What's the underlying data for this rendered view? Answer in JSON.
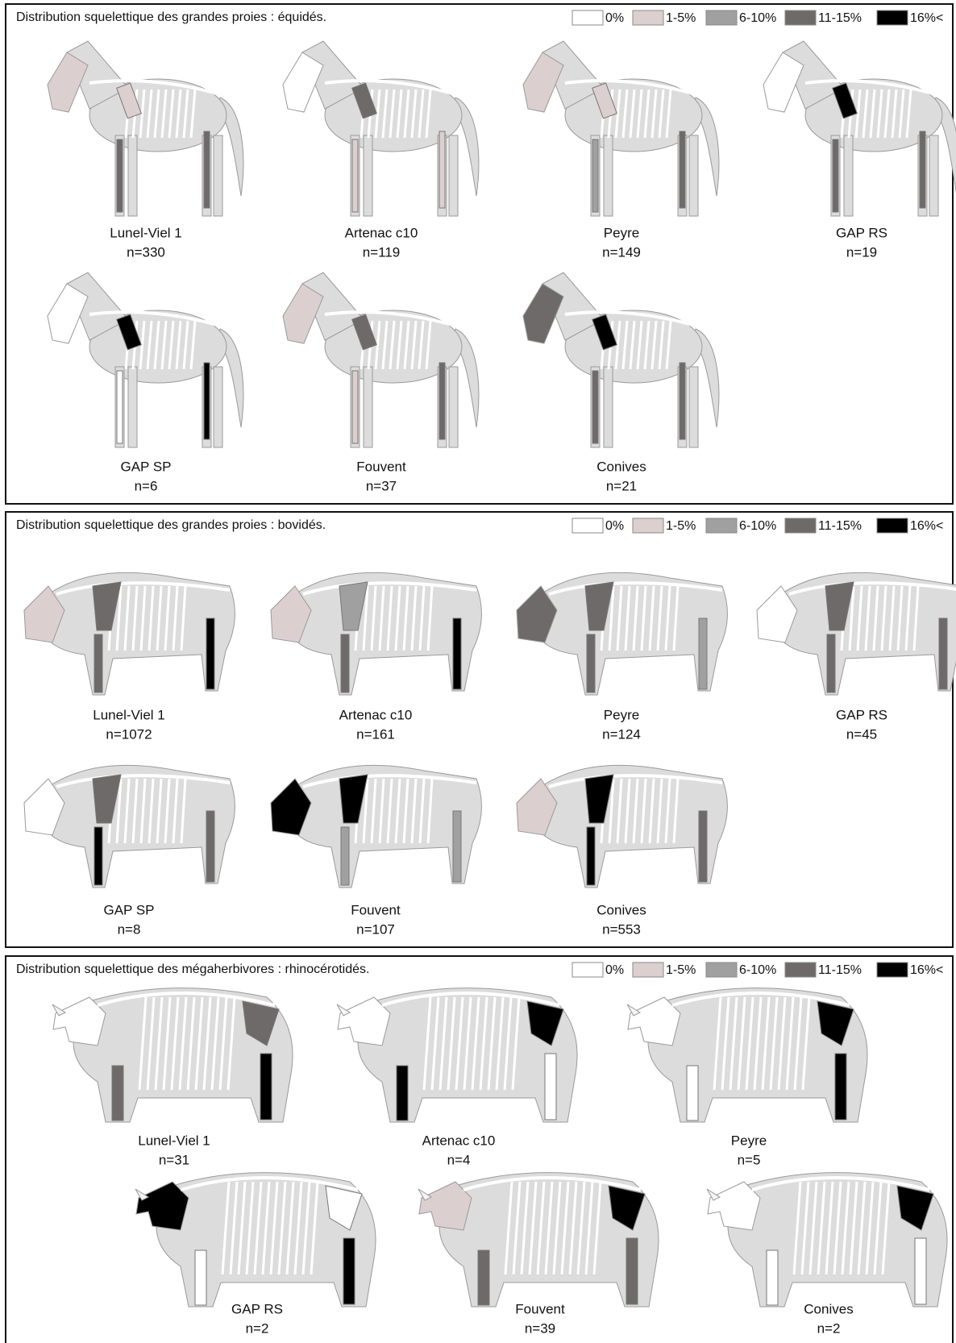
{
  "panels": [
    {
      "title": "Distribution squelettique des grandes proies : équidés.",
      "legend": [
        "0%",
        "1-5%",
        "6-10%",
        "11-15%",
        "16%<"
      ],
      "sites": [
        {
          "name": "Lunel-Viel 1",
          "n": "n=330"
        },
        {
          "name": "Artenac c10",
          "n": "n=119"
        },
        {
          "name": "Peyre",
          "n": "n=149"
        },
        {
          "name": "GAP RS",
          "n": "n=19"
        },
        {
          "name": "GAP SP",
          "n": "n=6"
        },
        {
          "name": "Fouvent",
          "n": "n=37"
        },
        {
          "name": "Conives",
          "n": "n=21"
        }
      ]
    },
    {
      "title": "Distribution squelettique des grandes proies : bovidés.",
      "legend": [
        "0%",
        "1-5%",
        "6-10%",
        "11-15%",
        "16%<"
      ],
      "sites": [
        {
          "name": "Lunel-Viel 1",
          "n": "n=1072"
        },
        {
          "name": "Artenac c10",
          "n": "n=161"
        },
        {
          "name": "Peyre",
          "n": "n=124"
        },
        {
          "name": "GAP RS",
          "n": "n=45"
        },
        {
          "name": "GAP SP",
          "n": "n=8"
        },
        {
          "name": "Fouvent",
          "n": "n=107"
        },
        {
          "name": "Conives",
          "n": "n=553"
        }
      ]
    },
    {
      "title": "Distribution squelettique des mégaherbivores : rhinocérotidés.",
      "legend": [
        "0%",
        "1-5%",
        "6-10%",
        "11-15%",
        "16%<"
      ],
      "sites": [
        {
          "name": "Lunel-Viel 1",
          "n": "n=31"
        },
        {
          "name": "Artenac c10",
          "n": "n=4"
        },
        {
          "name": "Peyre",
          "n": "n=5"
        },
        {
          "name": "GAP RS",
          "n": "n=2"
        },
        {
          "name": "Fouvent",
          "n": "n=39"
        },
        {
          "name": "Conives",
          "n": "n=2"
        }
      ]
    }
  ]
}
